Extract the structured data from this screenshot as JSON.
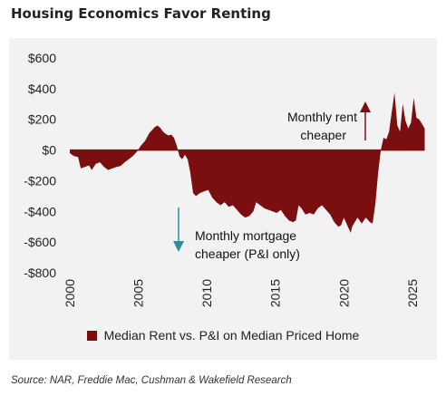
{
  "title": "Housing Economics Favor Renting",
  "source": "Source: NAR, Freddie Mac, Cushman & Wakefield Research",
  "chart_data": {
    "type": "area",
    "title": "Housing Economics Favor Renting",
    "xlabel": "",
    "ylabel": "",
    "xlim": [
      2000,
      2026
    ],
    "ylim": [
      -800,
      600
    ],
    "xticks": [
      2000,
      2005,
      2010,
      2015,
      2020,
      2025
    ],
    "yticks": [
      600,
      400,
      200,
      0,
      -200,
      -400,
      -600,
      -800
    ],
    "ytick_labels": [
      "$600",
      "$400",
      "$200",
      "$0",
      "-$200",
      "-$400",
      "-$600",
      "-$800"
    ],
    "grid": false,
    "legend_position": "bottom",
    "series": [
      {
        "name": "Median Rent vs. P&I on Median Priced Home",
        "color": "#7b0f0f",
        "points": [
          [
            2000.0,
            -20
          ],
          [
            2000.3,
            -40
          ],
          [
            2000.6,
            -45
          ],
          [
            2000.8,
            -120
          ],
          [
            2001.1,
            -110
          ],
          [
            2001.4,
            -100
          ],
          [
            2001.6,
            -130
          ],
          [
            2001.9,
            -90
          ],
          [
            2002.2,
            -80
          ],
          [
            2002.5,
            -110
          ],
          [
            2002.8,
            -130
          ],
          [
            2003.1,
            -120
          ],
          [
            2003.4,
            -110
          ],
          [
            2003.7,
            -105
          ],
          [
            2004.0,
            -80
          ],
          [
            2004.3,
            -60
          ],
          [
            2004.6,
            -40
          ],
          [
            2004.9,
            -10
          ],
          [
            2005.2,
            30
          ],
          [
            2005.5,
            60
          ],
          [
            2005.8,
            110
          ],
          [
            2006.0,
            130
          ],
          [
            2006.2,
            150
          ],
          [
            2006.4,
            160
          ],
          [
            2006.6,
            145
          ],
          [
            2006.8,
            120
          ],
          [
            2007.0,
            105
          ],
          [
            2007.2,
            95
          ],
          [
            2007.4,
            100
          ],
          [
            2007.6,
            80
          ],
          [
            2007.8,
            30
          ],
          [
            2008.0,
            -40
          ],
          [
            2008.2,
            -60
          ],
          [
            2008.4,
            -30
          ],
          [
            2008.6,
            -60
          ],
          [
            2008.8,
            -150
          ],
          [
            2009.0,
            -280
          ],
          [
            2009.2,
            -300
          ],
          [
            2009.5,
            -280
          ],
          [
            2009.8,
            -270
          ],
          [
            2010.1,
            -260
          ],
          [
            2010.4,
            -310
          ],
          [
            2010.7,
            -340
          ],
          [
            2011.0,
            -360
          ],
          [
            2011.3,
            -340
          ],
          [
            2011.6,
            -370
          ],
          [
            2011.9,
            -360
          ],
          [
            2012.2,
            -390
          ],
          [
            2012.5,
            -420
          ],
          [
            2012.8,
            -440
          ],
          [
            2013.1,
            -430
          ],
          [
            2013.4,
            -400
          ],
          [
            2013.6,
            -340
          ],
          [
            2013.9,
            -360
          ],
          [
            2014.2,
            -380
          ],
          [
            2014.5,
            -390
          ],
          [
            2014.8,
            -400
          ],
          [
            2015.1,
            -410
          ],
          [
            2015.4,
            -390
          ],
          [
            2015.7,
            -430
          ],
          [
            2016.0,
            -460
          ],
          [
            2016.3,
            -470
          ],
          [
            2016.5,
            -460
          ],
          [
            2016.7,
            -360
          ],
          [
            2016.9,
            -380
          ],
          [
            2017.2,
            -420
          ],
          [
            2017.5,
            -410
          ],
          [
            2017.8,
            -420
          ],
          [
            2018.1,
            -380
          ],
          [
            2018.4,
            -360
          ],
          [
            2018.7,
            -390
          ],
          [
            2019.0,
            -420
          ],
          [
            2019.3,
            -470
          ],
          [
            2019.6,
            -500
          ],
          [
            2019.8,
            -490
          ],
          [
            2020.0,
            -440
          ],
          [
            2020.3,
            -500
          ],
          [
            2020.5,
            -540
          ],
          [
            2020.6,
            -500
          ],
          [
            2020.8,
            -470
          ],
          [
            2021.0,
            -440
          ],
          [
            2021.3,
            -480
          ],
          [
            2021.6,
            -440
          ],
          [
            2021.9,
            -470
          ],
          [
            2022.1,
            -480
          ],
          [
            2022.3,
            -350
          ],
          [
            2022.5,
            -150
          ],
          [
            2022.7,
            0
          ],
          [
            2022.9,
            80
          ],
          [
            2023.1,
            70
          ],
          [
            2023.3,
            120
          ],
          [
            2023.5,
            250
          ],
          [
            2023.7,
            375
          ],
          [
            2023.9,
            160
          ],
          [
            2024.1,
            120
          ],
          [
            2024.3,
            300
          ],
          [
            2024.5,
            190
          ],
          [
            2024.7,
            140
          ],
          [
            2024.9,
            180
          ],
          [
            2025.1,
            340
          ],
          [
            2025.3,
            210
          ],
          [
            2025.5,
            200
          ],
          [
            2025.7,
            170
          ],
          [
            2025.9,
            140
          ]
        ]
      }
    ],
    "annotations": [
      {
        "lines": [
          "Monthly rent",
          "cheaper"
        ],
        "arrow": "up",
        "arrow_color": "#7b0f0f"
      },
      {
        "lines": [
          "Monthly mortgage",
          "cheaper (P&I only)"
        ],
        "arrow": "down",
        "arrow_color": "#2a8fa0"
      }
    ]
  }
}
